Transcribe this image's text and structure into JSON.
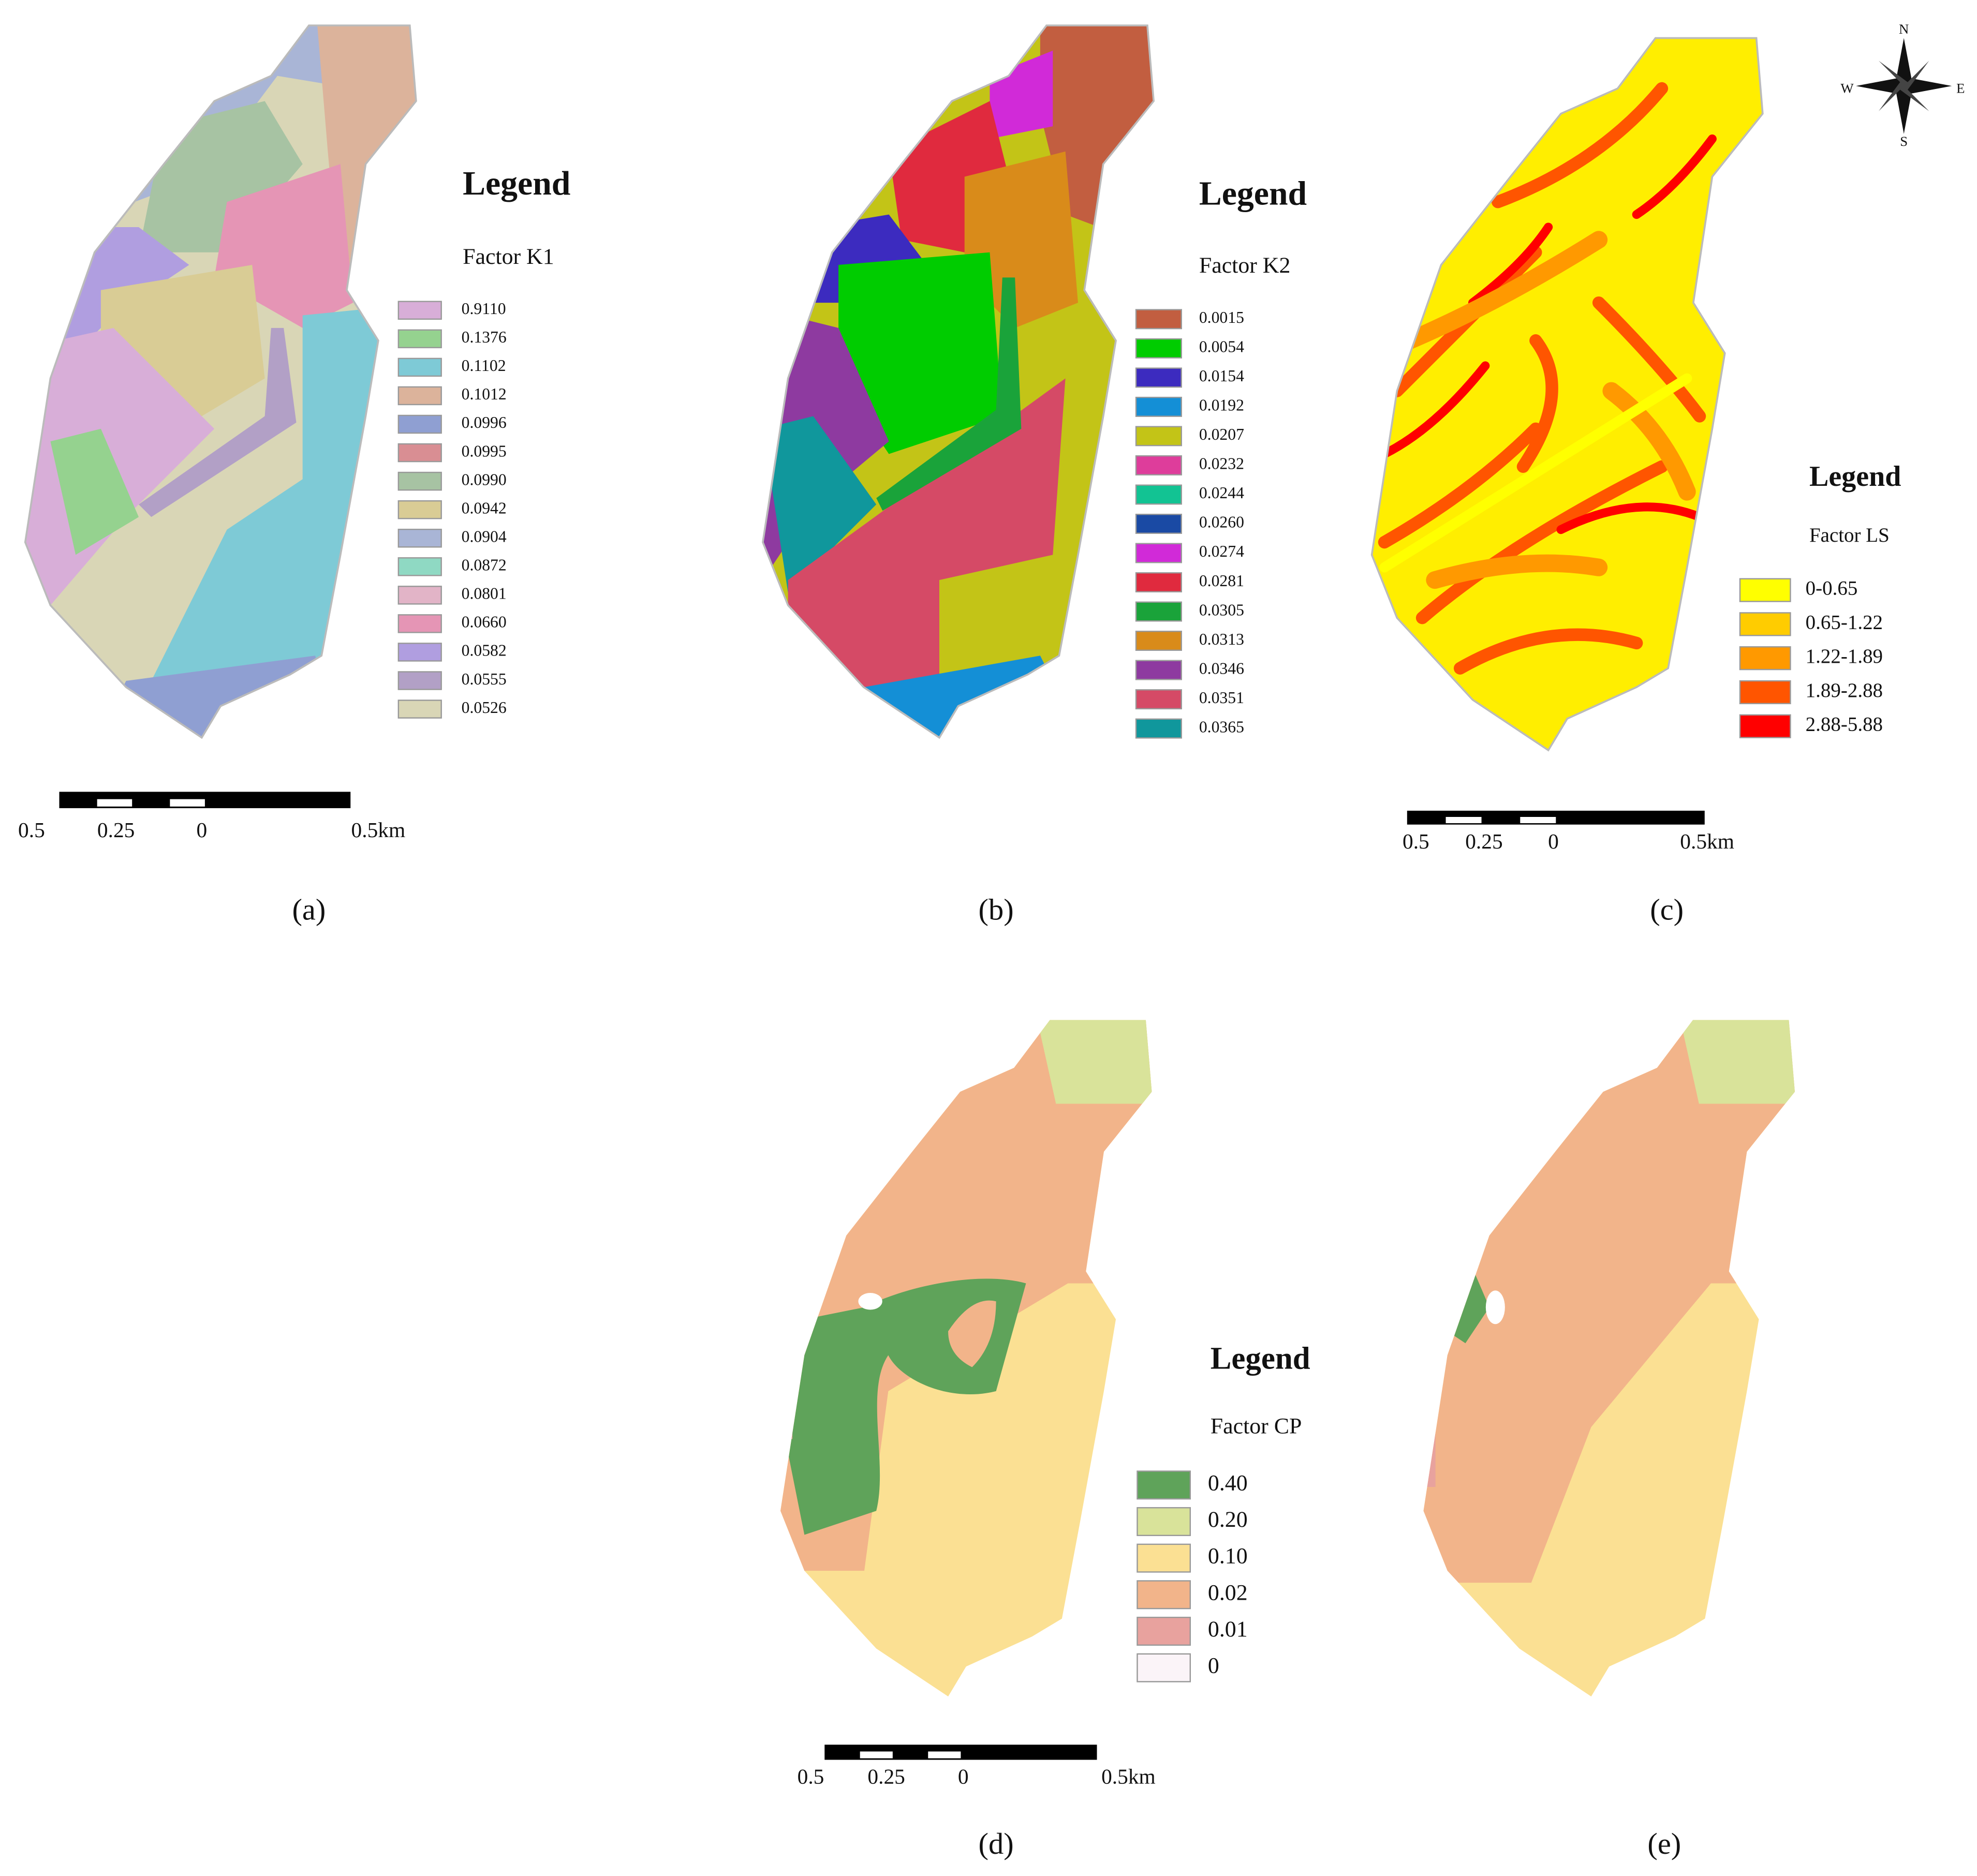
{
  "panels": [
    {
      "label": "(a)",
      "legend_title": "Legend",
      "factor": "Factor K1",
      "items": [
        {
          "label": "0.9110",
          "color": "#d8aed8"
        },
        {
          "label": "0.1376",
          "color": "#95d28f"
        },
        {
          "label": "0.1102",
          "color": "#7ecad6"
        },
        {
          "label": "0.1012",
          "color": "#dcb39b"
        },
        {
          "label": "0.0996",
          "color": "#8f9fd2"
        },
        {
          "label": "0.0995",
          "color": "#d98e93"
        },
        {
          "label": "0.0990",
          "color": "#a7c3a3"
        },
        {
          "label": "0.0942",
          "color": "#d9cc95"
        },
        {
          "label": "0.0904",
          "color": "#a9b5d6"
        },
        {
          "label": "0.0872",
          "color": "#8fd9c3"
        },
        {
          "label": "0.0801",
          "color": "#e2b4c7"
        },
        {
          "label": "0.0660",
          "color": "#e595b5"
        },
        {
          "label": "0.0582",
          "color": "#b09ee0"
        },
        {
          "label": "0.0555",
          "color": "#b2a0c6"
        },
        {
          "label": "0.0526",
          "color": "#d9d6b6"
        }
      ],
      "scale": [
        "0.5",
        "0.25",
        "0",
        "0.5km"
      ]
    },
    {
      "label": "(b)",
      "legend_title": "Legend",
      "factor": "Factor K2",
      "items": [
        {
          "label": "0.0015",
          "color": "#c25e40"
        },
        {
          "label": "0.0054",
          "color": "#00cc00"
        },
        {
          "label": "0.0154",
          "color": "#3c2bbf"
        },
        {
          "label": "0.0192",
          "color": "#148fd6"
        },
        {
          "label": "0.0207",
          "color": "#c3c417"
        },
        {
          "label": "0.0232",
          "color": "#de3d9b"
        },
        {
          "label": "0.0244",
          "color": "#12c393"
        },
        {
          "label": "0.0260",
          "color": "#1a4aa4"
        },
        {
          "label": "0.0274",
          "color": "#d12ad8"
        },
        {
          "label": "0.0281",
          "color": "#e02a3e"
        },
        {
          "label": "0.0305",
          "color": "#1aa33a"
        },
        {
          "label": "0.0313",
          "color": "#d98b1a"
        },
        {
          "label": "0.0346",
          "color": "#8e3aa0"
        },
        {
          "label": "0.0351",
          "color": "#d54a66"
        },
        {
          "label": "0.0365",
          "color": "#10979c"
        }
      ]
    },
    {
      "label": "(c)",
      "legend_title": "Legend",
      "factor": "Factor LS",
      "items": [
        {
          "label": "0-0.65",
          "color": "#ffff00"
        },
        {
          "label": "0.65-1.22",
          "color": "#ffcc00"
        },
        {
          "label": "1.22-1.89",
          "color": "#ff9900"
        },
        {
          "label": "1.89-2.88",
          "color": "#ff5500"
        },
        {
          "label": "2.88-5.88",
          "color": "#ff0000"
        }
      ],
      "scale": [
        "0.5",
        "0.25",
        "0",
        "0.5km"
      ]
    },
    {
      "label": "(d)",
      "legend_title": "Legend",
      "factor": "Factor CP",
      "items": [
        {
          "label": "0.40",
          "color": "#5fa35a"
        },
        {
          "label": "0.20",
          "color": "#d9e39a"
        },
        {
          "label": "0.10",
          "color": "#fbe093"
        },
        {
          "label": "0.02",
          "color": "#f2b48a"
        },
        {
          "label": "0.01",
          "color": "#e8a29e"
        },
        {
          "label": "0",
          "color": "#fbf4f8"
        }
      ],
      "scale": [
        "0.5",
        "0.25",
        "0",
        "0.5km"
      ]
    },
    {
      "label": "(e)"
    }
  ],
  "compass": [
    "N",
    "E",
    "S",
    "W"
  ]
}
